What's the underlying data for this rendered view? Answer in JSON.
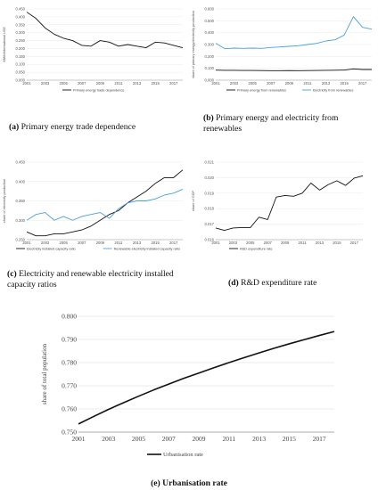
{
  "captions": {
    "a": {
      "label": "(a)",
      "text": "Primary energy trade dependence"
    },
    "b": {
      "label": "(b)",
      "text": "Primary energy and electricity from renewables"
    },
    "c": {
      "label": "(c)",
      "text": "Electricity and renewable electricity installed capacity ratios"
    },
    "d": {
      "label": "(d)",
      "text": "R&D expenditure rate"
    },
    "e": {
      "label": "(e)",
      "text": "Urbanisation rate"
    }
  },
  "chart_data": [
    {
      "id": "a",
      "type": "line",
      "ylabel": "MWh/international US$",
      "ylim": [
        0,
        0.45
      ],
      "yticks": [
        0.0,
        0.05,
        0.1,
        0.15,
        0.2,
        0.25,
        0.3,
        0.35,
        0.4,
        0.45
      ],
      "ytick_labels": [
        "0.000",
        "0.050",
        "0.100",
        "0.150",
        "0.200",
        "0.250",
        "0.300",
        "0.350",
        "0.400",
        "0.450"
      ],
      "x": [
        2001,
        2002,
        2003,
        2004,
        2005,
        2006,
        2007,
        2008,
        2009,
        2010,
        2011,
        2012,
        2013,
        2014,
        2015,
        2016,
        2017,
        2018
      ],
      "xtick_labels": [
        "2001",
        "2003",
        "2005",
        "2007",
        "2009",
        "2011",
        "2013",
        "2015",
        "2017"
      ],
      "series": [
        {
          "name": "Primary energy trade dependence",
          "color": "#111111",
          "values": [
            0.43,
            0.39,
            0.33,
            0.29,
            0.265,
            0.25,
            0.22,
            0.215,
            0.25,
            0.24,
            0.215,
            0.225,
            0.215,
            0.205,
            0.24,
            0.235,
            0.22,
            0.205
          ]
        }
      ],
      "legend": "bottom"
    },
    {
      "id": "b",
      "type": "line",
      "ylabel": "share of primary energy/electricity production",
      "ylim": [
        0,
        0.6
      ],
      "yticks": [
        0.0,
        0.1,
        0.2,
        0.3,
        0.4,
        0.5,
        0.6
      ],
      "ytick_labels": [
        "0.000",
        "0.100",
        "0.200",
        "0.300",
        "0.400",
        "0.500",
        "0.600"
      ],
      "x": [
        2001,
        2002,
        2003,
        2004,
        2005,
        2006,
        2007,
        2008,
        2009,
        2010,
        2011,
        2012,
        2013,
        2014,
        2015,
        2016,
        2017,
        2018
      ],
      "xtick_labels": [
        "2001",
        "2003",
        "2005",
        "2007",
        "2009",
        "2011",
        "2013",
        "2015",
        "2017"
      ],
      "series": [
        {
          "name": "Primary energy from renewables",
          "color": "#111111",
          "values": [
            0.085,
            0.083,
            0.083,
            0.082,
            0.082,
            0.081,
            0.08,
            0.08,
            0.081,
            0.08,
            0.081,
            0.082,
            0.083,
            0.084,
            0.085,
            0.095,
            0.09,
            0.09
          ]
        },
        {
          "name": "Electricity from renewables",
          "color": "#4a9fd8",
          "values": [
            0.31,
            0.265,
            0.27,
            0.268,
            0.27,
            0.268,
            0.275,
            0.28,
            0.285,
            0.29,
            0.3,
            0.31,
            0.33,
            0.34,
            0.38,
            0.535,
            0.445,
            0.43
          ]
        }
      ],
      "legend": "bottom"
    },
    {
      "id": "c",
      "type": "line",
      "ylabel": "share of electricity production",
      "ylim": [
        0.25,
        0.45
      ],
      "yticks": [
        0.25,
        0.3,
        0.35,
        0.4,
        0.45
      ],
      "ytick_labels": [
        "0.250",
        "0.300",
        "0.350",
        "0.400",
        "0.450"
      ],
      "x": [
        2001,
        2002,
        2003,
        2004,
        2005,
        2006,
        2007,
        2008,
        2009,
        2010,
        2011,
        2012,
        2013,
        2014,
        2015,
        2016,
        2017,
        2018
      ],
      "xtick_labels": [
        "2001",
        "2003",
        "2005",
        "2007",
        "2009",
        "2011",
        "2013",
        "2015",
        "2017"
      ],
      "series": [
        {
          "name": "Electricity installed capacity ratio",
          "color": "#111111",
          "values": [
            0.27,
            0.26,
            0.26,
            0.265,
            0.265,
            0.27,
            0.275,
            0.285,
            0.3,
            0.315,
            0.325,
            0.345,
            0.36,
            0.375,
            0.395,
            0.41,
            0.41,
            0.43
          ]
        },
        {
          "name": "Renewable electricity installed capacity ratio",
          "color": "#4a9fd8",
          "values": [
            0.3,
            0.315,
            0.32,
            0.3,
            0.31,
            0.3,
            0.31,
            0.315,
            0.32,
            0.305,
            0.33,
            0.345,
            0.35,
            0.35,
            0.355,
            0.365,
            0.37,
            0.38
          ]
        }
      ],
      "legend": "bottom"
    },
    {
      "id": "d",
      "type": "line",
      "ylabel": "share of GDP",
      "ylim": [
        0.016,
        0.021
      ],
      "yticks": [
        0.016,
        0.017,
        0.018,
        0.019,
        0.02,
        0.021
      ],
      "ytick_labels": [
        "0.016",
        "0.017",
        "0.018",
        "0.019",
        "0.020",
        "0.021"
      ],
      "x": [
        2001,
        2002,
        2003,
        2004,
        2005,
        2006,
        2007,
        2008,
        2009,
        2010,
        2011,
        2012,
        2013,
        2014,
        2015,
        2016,
        2017,
        2018
      ],
      "xtick_labels": [
        "2001",
        "2003",
        "2005",
        "2007",
        "2009",
        "2011",
        "2013",
        "2015",
        "2017"
      ],
      "series": [
        {
          "name": "R&D expenditure rate",
          "color": "#111111",
          "values": [
            0.01675,
            0.0166,
            0.01675,
            0.01678,
            0.01678,
            0.01745,
            0.0173,
            0.01875,
            0.01885,
            0.0188,
            0.019,
            0.01965,
            0.0192,
            0.01955,
            0.0198,
            0.0195,
            0.01997,
            0.02012
          ]
        }
      ],
      "legend": "bottom"
    },
    {
      "id": "e",
      "type": "line",
      "ylabel": "share of total population",
      "ylim": [
        0.75,
        0.8
      ],
      "yticks": [
        0.75,
        0.76,
        0.77,
        0.78,
        0.79,
        0.8
      ],
      "ytick_labels": [
        "0.750",
        "0.760",
        "0.770",
        "0.780",
        "0.790",
        "0.800"
      ],
      "x": [
        2001,
        2002,
        2003,
        2004,
        2005,
        2006,
        2007,
        2008,
        2009,
        2010,
        2011,
        2012,
        2013,
        2014,
        2015,
        2016,
        2017,
        2018
      ],
      "xtick_labels": [
        "2001",
        "2003",
        "2005",
        "2007",
        "2009",
        "2011",
        "2013",
        "2015",
        "2017"
      ],
      "series": [
        {
          "name": "Urbanisation rate",
          "color": "#111111",
          "values": [
            0.7535,
            0.7567,
            0.7598,
            0.7627,
            0.7655,
            0.7682,
            0.7707,
            0.7732,
            0.7755,
            0.7778,
            0.78,
            0.7821,
            0.7842,
            0.7862,
            0.7881,
            0.7899,
            0.7917,
            0.7934
          ]
        }
      ],
      "legend": "bottom"
    }
  ]
}
